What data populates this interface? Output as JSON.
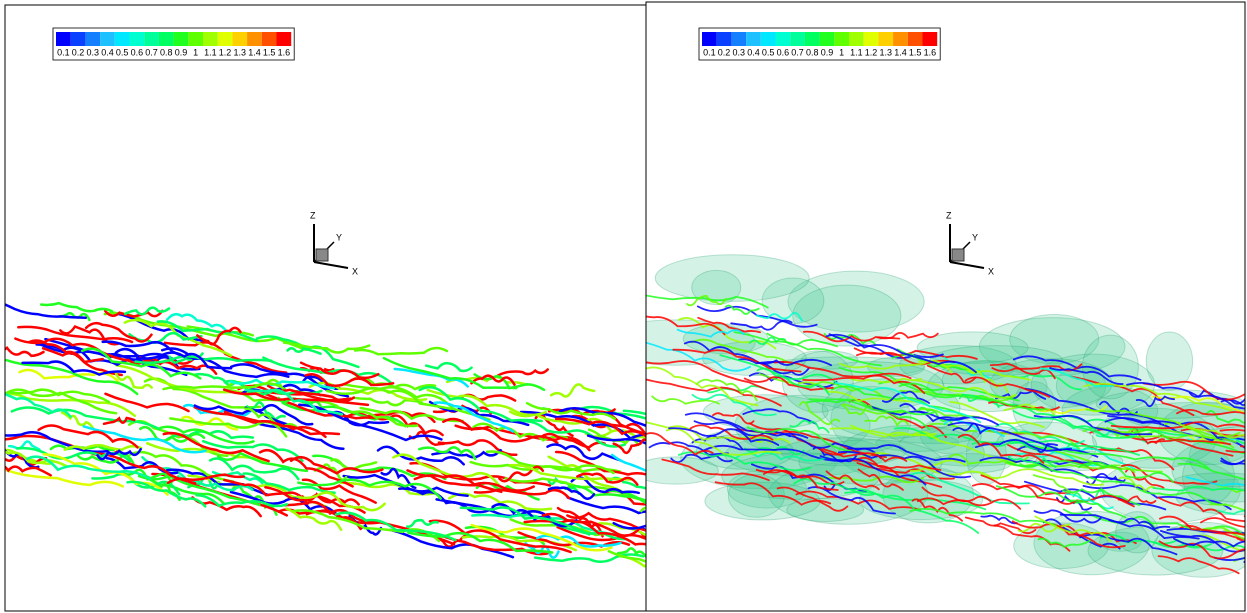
{
  "panels": [
    {
      "colorbar": {
        "labels": [
          "0.1",
          "0.2",
          "0.3",
          "0.4",
          "0.5",
          "0.6",
          "0.7",
          "0.8",
          "0.9",
          "1",
          "1.1",
          "1.2",
          "1.3",
          "1.4",
          "1.5",
          "1.6"
        ],
        "colors": [
          "#0000ff",
          "#0a40ff",
          "#1480ff",
          "#1ec0ff",
          "#00e8ff",
          "#00ffd0",
          "#00ff9a",
          "#00ff60",
          "#20ff20",
          "#60ff00",
          "#a0ff00",
          "#e0ff00",
          "#ffd000",
          "#ff9000",
          "#ff5000",
          "#ff0000"
        ]
      },
      "axes": {
        "z": "Z",
        "y": "Y",
        "x": "X"
      },
      "isosurface": false
    },
    {
      "colorbar": {
        "labels": [
          "0.1",
          "0.2",
          "0.3",
          "0.4",
          "0.5",
          "0.6",
          "0.7",
          "0.8",
          "0.9",
          "1",
          "1.1",
          "1.2",
          "1.3",
          "1.4",
          "1.5",
          "1.6"
        ],
        "colors": [
          "#0000ff",
          "#0a40ff",
          "#1480ff",
          "#1ec0ff",
          "#00e8ff",
          "#00ffd0",
          "#00ff9a",
          "#00ff60",
          "#20ff20",
          "#60ff00",
          "#a0ff00",
          "#e0ff00",
          "#ffd000",
          "#ff9000",
          "#ff5000",
          "#ff0000"
        ]
      },
      "axes": {
        "z": "Z",
        "y": "Y",
        "x": "X"
      },
      "isosurface": true
    }
  ]
}
